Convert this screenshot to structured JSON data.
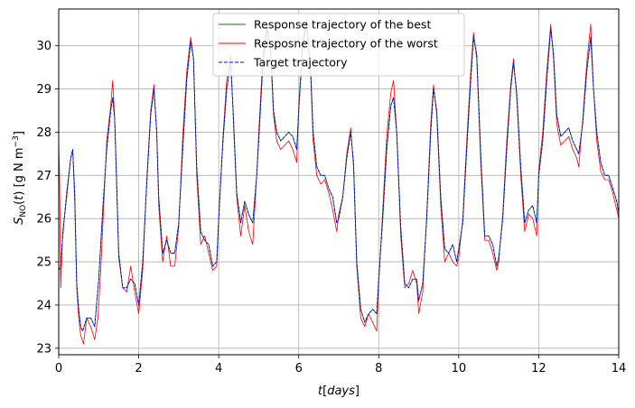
{
  "chart_data": {
    "type": "line",
    "title": "",
    "xlabel": "t[days]",
    "ylabel": "S_NO(t) [g N m^-3]",
    "xlim": [
      0,
      14
    ],
    "ylim": [
      22.85,
      30.85
    ],
    "xticks": [
      0,
      2,
      4,
      6,
      8,
      10,
      12,
      14
    ],
    "yticks": [
      23,
      24,
      25,
      26,
      27,
      28,
      29,
      30
    ],
    "grid": true,
    "legend_position": "top-center",
    "series": [
      {
        "name": "Response trajectory of the best",
        "color": "#008000",
        "style": "solid",
        "x": [
          0.0,
          0.05,
          0.1,
          0.2,
          0.3,
          0.35,
          0.4,
          0.45,
          0.5,
          0.55,
          0.6,
          0.7,
          0.8,
          0.9,
          1.0,
          1.1,
          1.2,
          1.3,
          1.35,
          1.4,
          1.45,
          1.5,
          1.6,
          1.7,
          1.8,
          1.9,
          2.0,
          2.1,
          2.2,
          2.3,
          2.38,
          2.45,
          2.5,
          2.6,
          2.7,
          2.8,
          2.9,
          3.0,
          3.1,
          3.2,
          3.3,
          3.37,
          3.45,
          3.55,
          3.65,
          3.75,
          3.85,
          3.95,
          4.0,
          4.1,
          4.2,
          4.3,
          4.36,
          4.45,
          4.55,
          4.65,
          4.75,
          4.85,
          4.95,
          5.0,
          5.1,
          5.2,
          5.3,
          5.37,
          5.45,
          5.55,
          5.65,
          5.75,
          5.85,
          5.95,
          6.0,
          6.1,
          6.2,
          6.3,
          6.36,
          6.45,
          6.55,
          6.65,
          6.75,
          6.85,
          6.95,
          7.0,
          7.1,
          7.2,
          7.3,
          7.37,
          7.45,
          7.55,
          7.65,
          7.75,
          7.85,
          7.95,
          8.0,
          8.1,
          8.2,
          8.3,
          8.37,
          8.45,
          8.55,
          8.65,
          8.75,
          8.85,
          8.95,
          9.0,
          9.1,
          9.2,
          9.3,
          9.37,
          9.45,
          9.55,
          9.65,
          9.75,
          9.85,
          9.95,
          10.0,
          10.1,
          10.2,
          10.3,
          10.37,
          10.45,
          10.55,
          10.65,
          10.75,
          10.85,
          10.95,
          11.0,
          11.1,
          11.2,
          11.3,
          11.37,
          11.45,
          11.55,
          11.65,
          11.75,
          11.85,
          11.95,
          12.0,
          12.1,
          12.2,
          12.3,
          12.37,
          12.45,
          12.55,
          12.65,
          12.75,
          12.85,
          12.95,
          13.0,
          13.1,
          13.2,
          13.3,
          13.37,
          13.45,
          13.55,
          13.65,
          13.75,
          13.85,
          13.95,
          14.0
        ],
        "y": [
          24.8,
          24.9,
          25.6,
          26.6,
          27.4,
          27.6,
          26.6,
          24.5,
          23.9,
          23.5,
          23.4,
          23.7,
          23.7,
          23.5,
          24.6,
          26.2,
          27.6,
          28.5,
          28.8,
          28.3,
          26.8,
          25.2,
          24.4,
          24.4,
          24.6,
          24.5,
          24.0,
          25.0,
          26.8,
          28.4,
          29.0,
          28.0,
          26.5,
          25.2,
          25.5,
          25.2,
          25.2,
          25.9,
          27.6,
          29.2,
          30.1,
          29.7,
          27.2,
          25.7,
          25.5,
          25.4,
          24.9,
          25.0,
          26.0,
          27.7,
          29.0,
          29.6,
          28.5,
          26.6,
          25.9,
          26.4,
          26.1,
          25.9,
          27.0,
          27.8,
          29.5,
          30.4,
          29.9,
          28.5,
          28.0,
          27.8,
          27.9,
          28.0,
          27.9,
          27.6,
          28.5,
          30.0,
          30.5,
          29.4,
          28.0,
          27.2,
          27.0,
          27.0,
          26.7,
          26.5,
          25.9,
          26.0,
          26.5,
          27.4,
          28.0,
          27.3,
          25.0,
          23.9,
          23.6,
          23.8,
          23.9,
          23.8,
          24.6,
          26.0,
          27.6,
          28.6,
          28.8,
          28.0,
          25.8,
          24.5,
          24.4,
          24.6,
          24.6,
          24.1,
          24.5,
          26.0,
          28.0,
          29.0,
          28.5,
          26.5,
          25.3,
          25.2,
          25.4,
          25.0,
          25.3,
          25.9,
          27.6,
          29.2,
          30.2,
          29.8,
          27.5,
          25.6,
          25.6,
          25.4,
          24.9,
          25.1,
          26.0,
          27.6,
          29.0,
          29.6,
          28.9,
          27.2,
          25.9,
          26.2,
          26.3,
          25.9,
          27.0,
          27.8,
          29.2,
          30.4,
          29.8,
          28.4,
          27.9,
          28.0,
          28.1,
          27.8,
          27.6,
          27.5,
          28.2,
          29.4,
          30.2,
          29.0,
          28.0,
          27.3,
          27.0,
          27.0,
          26.7,
          26.4,
          26.1
        ]
      },
      {
        "name": "Resposne trajectory of the worst",
        "color": "#ff0000",
        "style": "solid",
        "x": [
          0.0,
          0.02,
          0.05,
          0.1,
          0.2,
          0.3,
          0.35,
          0.4,
          0.45,
          0.5,
          0.55,
          0.62,
          0.7,
          0.8,
          0.9,
          0.98,
          1.05,
          1.1,
          1.2,
          1.3,
          1.35,
          1.4,
          1.45,
          1.5,
          1.6,
          1.7,
          1.8,
          1.9,
          2.0,
          2.1,
          2.2,
          2.3,
          2.38,
          2.45,
          2.5,
          2.6,
          2.7,
          2.8,
          2.9,
          3.0,
          3.1,
          3.2,
          3.3,
          3.37,
          3.45,
          3.55,
          3.65,
          3.75,
          3.85,
          3.95,
          4.0,
          4.1,
          4.2,
          4.3,
          4.36,
          4.45,
          4.55,
          4.65,
          4.75,
          4.85,
          4.95,
          5.0,
          5.1,
          5.2,
          5.3,
          5.37,
          5.45,
          5.55,
          5.65,
          5.75,
          5.85,
          5.95,
          6.0,
          6.1,
          6.2,
          6.3,
          6.36,
          6.45,
          6.55,
          6.65,
          6.75,
          6.85,
          6.95,
          7.0,
          7.1,
          7.2,
          7.3,
          7.37,
          7.45,
          7.55,
          7.65,
          7.75,
          7.85,
          7.95,
          8.0,
          8.1,
          8.2,
          8.3,
          8.37,
          8.45,
          8.55,
          8.65,
          8.75,
          8.85,
          8.95,
          9.0,
          9.1,
          9.2,
          9.3,
          9.37,
          9.45,
          9.55,
          9.65,
          9.75,
          9.85,
          9.95,
          10.0,
          10.1,
          10.2,
          10.3,
          10.37,
          10.45,
          10.55,
          10.65,
          10.75,
          10.85,
          10.95,
          11.0,
          11.1,
          11.2,
          11.3,
          11.37,
          11.45,
          11.55,
          11.65,
          11.75,
          11.85,
          11.95,
          12.0,
          12.1,
          12.2,
          12.3,
          12.37,
          12.45,
          12.55,
          12.65,
          12.75,
          12.85,
          12.95,
          13.0,
          13.1,
          13.2,
          13.3,
          13.37,
          13.45,
          13.55,
          13.65,
          13.75,
          13.85,
          13.95,
          14.0
        ],
        "y": [
          27.8,
          27.0,
          24.4,
          25.7,
          26.5,
          27.4,
          27.6,
          26.4,
          24.4,
          23.7,
          23.3,
          23.1,
          23.7,
          23.5,
          23.2,
          23.7,
          24.8,
          25.8,
          27.8,
          28.6,
          29.2,
          28.3,
          26.7,
          25.1,
          24.4,
          24.3,
          24.9,
          24.3,
          23.8,
          24.8,
          26.9,
          28.5,
          29.1,
          28.0,
          26.3,
          25.0,
          25.6,
          24.9,
          24.9,
          25.8,
          27.9,
          29.4,
          30.2,
          29.7,
          27.0,
          25.4,
          25.6,
          25.2,
          24.8,
          24.9,
          26.0,
          27.8,
          29.2,
          29.8,
          28.4,
          26.5,
          25.6,
          26.3,
          25.7,
          25.4,
          27.0,
          28.0,
          29.7,
          30.5,
          29.8,
          28.4,
          27.8,
          27.6,
          27.7,
          27.8,
          27.6,
          27.3,
          28.6,
          30.1,
          30.6,
          29.3,
          27.8,
          27.0,
          26.8,
          26.9,
          26.6,
          26.2,
          25.7,
          26.1,
          26.5,
          27.5,
          28.1,
          27.2,
          24.9,
          23.7,
          23.5,
          23.8,
          23.6,
          23.4,
          24.5,
          26.2,
          27.9,
          28.9,
          29.2,
          28.0,
          25.6,
          24.4,
          24.5,
          24.8,
          24.5,
          23.8,
          24.3,
          26.1,
          28.2,
          29.1,
          28.4,
          26.3,
          25.0,
          25.2,
          25.0,
          24.9,
          25.1,
          26.0,
          27.8,
          29.4,
          30.3,
          29.7,
          27.3,
          25.5,
          25.5,
          25.2,
          24.8,
          25.0,
          26.1,
          27.8,
          29.1,
          29.7,
          28.8,
          27.0,
          25.7,
          26.1,
          26.0,
          25.6,
          27.1,
          28.0,
          29.4,
          30.5,
          29.7,
          28.2,
          27.7,
          27.8,
          27.9,
          27.6,
          27.4,
          27.2,
          28.3,
          29.6,
          30.5,
          29.0,
          27.8,
          27.1,
          26.9,
          26.9,
          26.6,
          26.2,
          26.0
        ]
      },
      {
        "name": "Target trajectory",
        "color": "#0000ff",
        "style": "dashed",
        "x": [
          0.0,
          0.05,
          0.1,
          0.2,
          0.3,
          0.35,
          0.4,
          0.45,
          0.5,
          0.55,
          0.6,
          0.7,
          0.8,
          0.9,
          1.0,
          1.1,
          1.2,
          1.3,
          1.35,
          1.4,
          1.45,
          1.5,
          1.6,
          1.7,
          1.8,
          1.9,
          2.0,
          2.1,
          2.2,
          2.3,
          2.38,
          2.45,
          2.5,
          2.6,
          2.7,
          2.8,
          2.9,
          3.0,
          3.1,
          3.2,
          3.3,
          3.37,
          3.45,
          3.55,
          3.65,
          3.75,
          3.85,
          3.95,
          4.0,
          4.1,
          4.2,
          4.3,
          4.36,
          4.45,
          4.55,
          4.65,
          4.75,
          4.85,
          4.95,
          5.0,
          5.1,
          5.2,
          5.3,
          5.37,
          5.45,
          5.55,
          5.65,
          5.75,
          5.85,
          5.95,
          6.0,
          6.1,
          6.2,
          6.3,
          6.36,
          6.45,
          6.55,
          6.65,
          6.75,
          6.85,
          6.95,
          7.0,
          7.1,
          7.2,
          7.3,
          7.37,
          7.45,
          7.55,
          7.65,
          7.75,
          7.85,
          7.95,
          8.0,
          8.1,
          8.2,
          8.3,
          8.37,
          8.45,
          8.55,
          8.65,
          8.75,
          8.85,
          8.95,
          9.0,
          9.1,
          9.2,
          9.3,
          9.37,
          9.45,
          9.55,
          9.65,
          9.75,
          9.85,
          9.95,
          10.0,
          10.1,
          10.2,
          10.3,
          10.37,
          10.45,
          10.55,
          10.65,
          10.75,
          10.85,
          10.95,
          11.0,
          11.1,
          11.2,
          11.3,
          11.37,
          11.45,
          11.55,
          11.65,
          11.75,
          11.85,
          11.95,
          12.0,
          12.1,
          12.2,
          12.3,
          12.37,
          12.45,
          12.55,
          12.65,
          12.75,
          12.85,
          12.95,
          13.0,
          13.1,
          13.2,
          13.3,
          13.37,
          13.45,
          13.55,
          13.65,
          13.75,
          13.85,
          13.95,
          14.0
        ],
        "y": [
          24.8,
          24.9,
          25.6,
          26.6,
          27.4,
          27.6,
          26.6,
          24.5,
          23.9,
          23.5,
          23.4,
          23.7,
          23.7,
          23.5,
          24.6,
          26.2,
          27.6,
          28.5,
          28.8,
          28.3,
          26.8,
          25.2,
          24.4,
          24.4,
          24.6,
          24.5,
          24.0,
          25.0,
          26.8,
          28.4,
          29.0,
          28.0,
          26.5,
          25.2,
          25.5,
          25.2,
          25.2,
          25.9,
          27.6,
          29.2,
          30.1,
          29.7,
          27.2,
          25.7,
          25.5,
          25.4,
          24.9,
          25.0,
          26.0,
          27.7,
          29.0,
          29.6,
          28.5,
          26.6,
          25.9,
          26.4,
          26.1,
          25.9,
          27.0,
          27.8,
          29.5,
          30.4,
          29.9,
          28.5,
          28.0,
          27.8,
          27.9,
          28.0,
          27.9,
          27.6,
          28.5,
          30.0,
          30.5,
          29.4,
          28.0,
          27.2,
          27.0,
          27.0,
          26.7,
          26.5,
          25.9,
          26.0,
          26.5,
          27.4,
          28.0,
          27.3,
          25.0,
          23.9,
          23.6,
          23.8,
          23.9,
          23.8,
          24.6,
          26.0,
          27.6,
          28.6,
          28.8,
          28.0,
          25.8,
          24.5,
          24.4,
          24.6,
          24.6,
          24.1,
          24.5,
          26.0,
          28.0,
          29.0,
          28.5,
          26.5,
          25.3,
          25.2,
          25.4,
          25.0,
          25.3,
          25.9,
          27.6,
          29.2,
          30.2,
          29.8,
          27.5,
          25.6,
          25.6,
          25.4,
          24.9,
          25.1,
          26.0,
          27.6,
          29.0,
          29.6,
          28.9,
          27.2,
          25.9,
          26.2,
          26.3,
          25.9,
          27.0,
          27.8,
          29.2,
          30.4,
          29.8,
          28.4,
          27.9,
          28.0,
          28.1,
          27.8,
          27.6,
          27.5,
          28.2,
          29.4,
          30.2,
          29.0,
          28.0,
          27.3,
          27.0,
          27.0,
          26.7,
          26.4,
          26.1
        ]
      }
    ]
  }
}
